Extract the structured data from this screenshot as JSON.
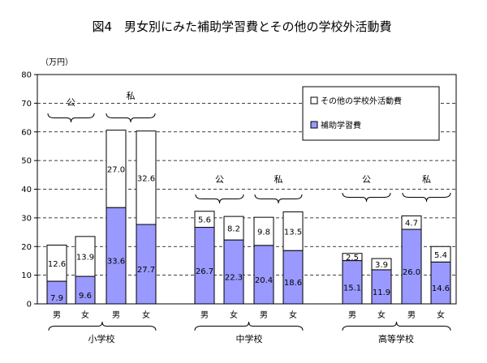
{
  "title": "図4　男女別にみた補助学習費とその他の学校外活動費",
  "chart_data": {
    "type": "bar",
    "stacked": true,
    "unit_label": "（万円）",
    "ylim": [
      0,
      80
    ],
    "yticks": [
      0,
      10,
      20,
      30,
      40,
      50,
      60,
      70,
      80
    ],
    "grid": true,
    "legend_position": "top-right",
    "series": [
      {
        "name": "補助学習費",
        "color": "#9999ff",
        "values": [
          7.9,
          9.6,
          33.6,
          27.7,
          26.7,
          22.3,
          20.4,
          18.6,
          15.1,
          11.9,
          26.0,
          14.6
        ]
      },
      {
        "name": "その他の学校外活動費",
        "color": "#ffffff",
        "values": [
          12.6,
          13.9,
          27.0,
          32.6,
          5.6,
          8.2,
          9.8,
          13.5,
          2.5,
          3.9,
          4.7,
          5.4
        ]
      }
    ],
    "legend_order": [
      1,
      0
    ],
    "categories": [
      "男",
      "女",
      "男",
      "女",
      "男",
      "女",
      "男",
      "女",
      "男",
      "女",
      "男",
      "女"
    ],
    "groups": [
      {
        "name": "小学校",
        "subgroups": [
          "公",
          "私"
        ]
      },
      {
        "name": "中学校",
        "subgroups": [
          "公",
          "私"
        ]
      },
      {
        "name": "高等学校",
        "subgroups": [
          "公",
          "私"
        ]
      }
    ]
  }
}
